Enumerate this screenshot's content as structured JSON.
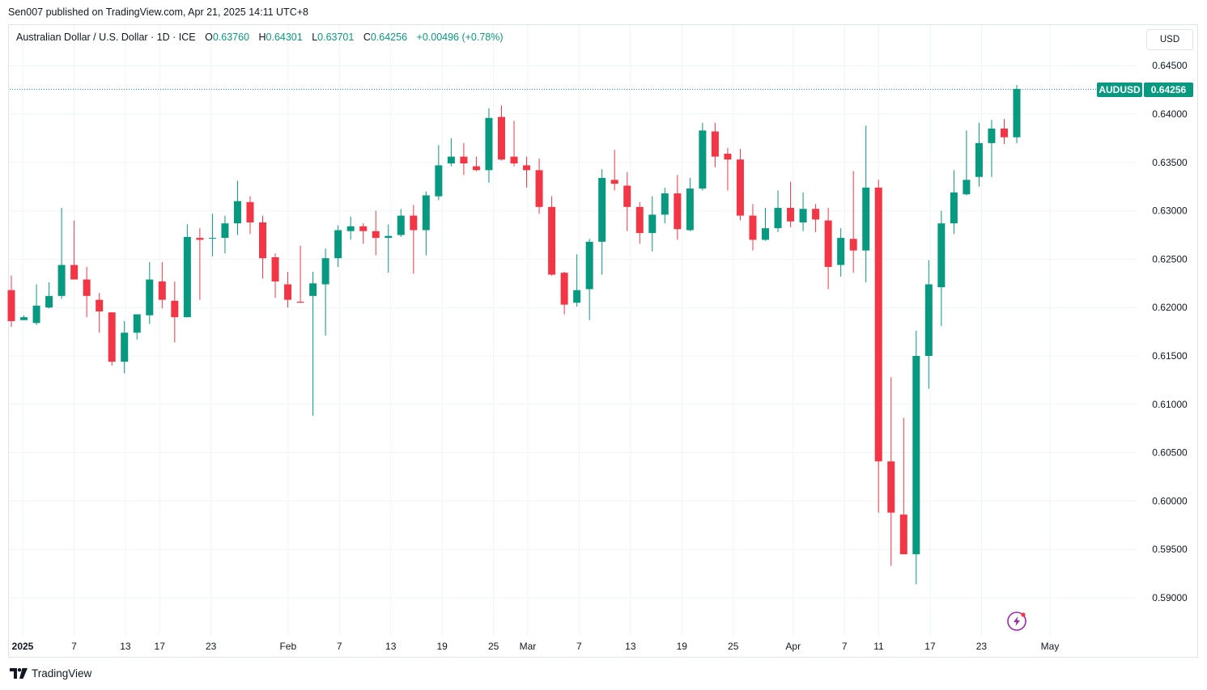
{
  "caption": "Sen007 published on TradingView.com, Apr 21, 2025 14:11 UTC+8",
  "legend": {
    "symbol": "Australian Dollar / U.S. Dollar · 1D · ICE",
    "o_label": "O",
    "o_value": "0.63760",
    "h_label": "H",
    "h_value": "0.64301",
    "l_label": "L",
    "l_value": "0.63701",
    "c_label": "C",
    "c_value": "0.64256",
    "change": "+0.00496 (+0.78%)"
  },
  "currency": "USD",
  "last_price": {
    "symbol": "AUDUSD",
    "price": "0.64256"
  },
  "brand": "TradingView",
  "colors": {
    "up": "#089981",
    "down": "#f23645",
    "grid": "#f0f3fa",
    "text": "#131722"
  },
  "icons": {
    "brand": "tradingview-logo-icon",
    "flash": "lightning-icon"
  },
  "chart_data": {
    "type": "candlestick",
    "x_unit": "trading day (Jan 2 2025 to Apr 21 2025)",
    "y_ticks": [
      "0.64500",
      "0.64000",
      "0.63500",
      "0.63000",
      "0.62500",
      "0.62000",
      "0.61500",
      "0.61000",
      "0.60500",
      "0.60000",
      "0.59500",
      "0.59000"
    ],
    "ylim": [
      0.5878,
      0.6468
    ],
    "grid": true,
    "x_ticks": [
      {
        "label": "2025",
        "date": "2025-01-01",
        "bold": true
      },
      {
        "label": "7",
        "date": "2025-01-07"
      },
      {
        "label": "13",
        "date": "2025-01-13"
      },
      {
        "label": "17",
        "date": "2025-01-17"
      },
      {
        "label": "23",
        "date": "2025-01-23"
      },
      {
        "label": "Feb",
        "date": "2025-02-01"
      },
      {
        "label": "7",
        "date": "2025-02-07"
      },
      {
        "label": "13",
        "date": "2025-02-13"
      },
      {
        "label": "19",
        "date": "2025-02-19"
      },
      {
        "label": "25",
        "date": "2025-02-25"
      },
      {
        "label": "Mar",
        "date": "2025-03-01"
      },
      {
        "label": "7",
        "date": "2025-03-07"
      },
      {
        "label": "13",
        "date": "2025-03-13"
      },
      {
        "label": "19",
        "date": "2025-03-19"
      },
      {
        "label": "25",
        "date": "2025-03-25"
      },
      {
        "label": "Apr",
        "date": "2025-04-01"
      },
      {
        "label": "7",
        "date": "2025-04-07"
      },
      {
        "label": "11",
        "date": "2025-04-11"
      },
      {
        "label": "17",
        "date": "2025-04-17"
      },
      {
        "label": "23",
        "date": "2025-04-23"
      },
      {
        "label": "May",
        "date": "2025-05-01"
      }
    ],
    "candles": [
      {
        "date": "2025-01-02",
        "o": 0.6218,
        "h": 0.6233,
        "l": 0.618,
        "c": 0.6186
      },
      {
        "date": "2025-01-03",
        "o": 0.6187,
        "h": 0.6192,
        "l": 0.6187,
        "c": 0.619
      },
      {
        "date": "2025-01-06",
        "o": 0.6184,
        "h": 0.6224,
        "l": 0.6182,
        "c": 0.6202
      },
      {
        "date": "2025-01-07",
        "o": 0.62,
        "h": 0.6226,
        "l": 0.6199,
        "c": 0.6212
      },
      {
        "date": "2025-01-08",
        "o": 0.6212,
        "h": 0.6303,
        "l": 0.6209,
        "c": 0.6244
      },
      {
        "date": "2025-01-09",
        "o": 0.6244,
        "h": 0.629,
        "l": 0.6229,
        "c": 0.6229
      },
      {
        "date": "2025-01-10",
        "o": 0.6229,
        "h": 0.6242,
        "l": 0.619,
        "c": 0.6212
      },
      {
        "date": "2025-01-13",
        "o": 0.6208,
        "h": 0.6215,
        "l": 0.6174,
        "c": 0.6196
      },
      {
        "date": "2025-01-14",
        "o": 0.6195,
        "h": 0.6195,
        "l": 0.614,
        "c": 0.6144
      },
      {
        "date": "2025-01-15",
        "o": 0.6144,
        "h": 0.6186,
        "l": 0.6132,
        "c": 0.6174
      },
      {
        "date": "2025-01-16",
        "o": 0.6174,
        "h": 0.6193,
        "l": 0.6167,
        "c": 0.6193
      },
      {
        "date": "2025-01-17",
        "o": 0.6192,
        "h": 0.6247,
        "l": 0.6183,
        "c": 0.6229
      },
      {
        "date": "2025-01-20",
        "o": 0.6227,
        "h": 0.6247,
        "l": 0.6199,
        "c": 0.6208
      },
      {
        "date": "2025-01-21",
        "o": 0.6207,
        "h": 0.6227,
        "l": 0.6164,
        "c": 0.619
      },
      {
        "date": "2025-01-22",
        "o": 0.619,
        "h": 0.6286,
        "l": 0.619,
        "c": 0.6273
      },
      {
        "date": "2025-01-23",
        "o": 0.6272,
        "h": 0.6282,
        "l": 0.6208,
        "c": 0.627
      },
      {
        "date": "2025-01-24",
        "o": 0.6272,
        "h": 0.6297,
        "l": 0.6253,
        "c": 0.6272
      },
      {
        "date": "2025-01-27",
        "o": 0.6272,
        "h": 0.6295,
        "l": 0.6256,
        "c": 0.6287
      },
      {
        "date": "2025-01-28",
        "o": 0.6287,
        "h": 0.6331,
        "l": 0.6275,
        "c": 0.631
      },
      {
        "date": "2025-01-29",
        "o": 0.6309,
        "h": 0.6315,
        "l": 0.6276,
        "c": 0.6288
      },
      {
        "date": "2025-01-30",
        "o": 0.6288,
        "h": 0.6295,
        "l": 0.623,
        "c": 0.6251
      },
      {
        "date": "2025-01-31",
        "o": 0.6252,
        "h": 0.6256,
        "l": 0.621,
        "c": 0.6227
      },
      {
        "date": "2025-02-03",
        "o": 0.6224,
        "h": 0.6237,
        "l": 0.62,
        "c": 0.6208
      },
      {
        "date": "2025-02-04",
        "o": 0.6206,
        "h": 0.6264,
        "l": 0.6205,
        "c": 0.6205
      },
      {
        "date": "2025-02-05",
        "o": 0.6212,
        "h": 0.6237,
        "l": 0.6088,
        "c": 0.6225
      },
      {
        "date": "2025-02-06",
        "o": 0.6224,
        "h": 0.6261,
        "l": 0.6171,
        "c": 0.6251
      },
      {
        "date": "2025-02-07",
        "o": 0.6251,
        "h": 0.6285,
        "l": 0.6242,
        "c": 0.628
      },
      {
        "date": "2025-02-10",
        "o": 0.6279,
        "h": 0.6294,
        "l": 0.627,
        "c": 0.6284
      },
      {
        "date": "2025-02-11",
        "o": 0.6284,
        "h": 0.6287,
        "l": 0.6266,
        "c": 0.6279
      },
      {
        "date": "2025-02-12",
        "o": 0.6279,
        "h": 0.63,
        "l": 0.6254,
        "c": 0.6272
      },
      {
        "date": "2025-02-13",
        "o": 0.6272,
        "h": 0.6286,
        "l": 0.6236,
        "c": 0.6274
      },
      {
        "date": "2025-02-14",
        "o": 0.6275,
        "h": 0.6302,
        "l": 0.6273,
        "c": 0.6295
      },
      {
        "date": "2025-02-17",
        "o": 0.6295,
        "h": 0.6306,
        "l": 0.6235,
        "c": 0.628
      },
      {
        "date": "2025-02-18",
        "o": 0.628,
        "h": 0.632,
        "l": 0.6254,
        "c": 0.6316
      },
      {
        "date": "2025-02-19",
        "o": 0.6315,
        "h": 0.6368,
        "l": 0.6311,
        "c": 0.6347
      },
      {
        "date": "2025-02-20",
        "o": 0.6349,
        "h": 0.6375,
        "l": 0.6346,
        "c": 0.6356
      },
      {
        "date": "2025-02-21",
        "o": 0.6356,
        "h": 0.637,
        "l": 0.6337,
        "c": 0.6349
      },
      {
        "date": "2025-02-24",
        "o": 0.6346,
        "h": 0.6356,
        "l": 0.6341,
        "c": 0.6342
      },
      {
        "date": "2025-02-25",
        "o": 0.6342,
        "h": 0.6406,
        "l": 0.6329,
        "c": 0.6396
      },
      {
        "date": "2025-02-26",
        "o": 0.6397,
        "h": 0.6409,
        "l": 0.6352,
        "c": 0.6353
      },
      {
        "date": "2025-02-27",
        "o": 0.6356,
        "h": 0.6393,
        "l": 0.6346,
        "c": 0.6349
      },
      {
        "date": "2025-02-28",
        "o": 0.6347,
        "h": 0.6356,
        "l": 0.6324,
        "c": 0.6342
      },
      {
        "date": "2025-03-03",
        "o": 0.6342,
        "h": 0.6354,
        "l": 0.6297,
        "c": 0.6304
      },
      {
        "date": "2025-03-04",
        "o": 0.6304,
        "h": 0.6315,
        "l": 0.6233,
        "c": 0.6234
      },
      {
        "date": "2025-03-05",
        "o": 0.6236,
        "h": 0.6237,
        "l": 0.6193,
        "c": 0.6203
      },
      {
        "date": "2025-03-06",
        "o": 0.6205,
        "h": 0.6255,
        "l": 0.6201,
        "c": 0.6218
      },
      {
        "date": "2025-03-07",
        "o": 0.6219,
        "h": 0.6271,
        "l": 0.6187,
        "c": 0.6268
      },
      {
        "date": "2025-03-10",
        "o": 0.6268,
        "h": 0.6343,
        "l": 0.6234,
        "c": 0.6334
      },
      {
        "date": "2025-03-11",
        "o": 0.6332,
        "h": 0.6363,
        "l": 0.6321,
        "c": 0.6328
      },
      {
        "date": "2025-03-12",
        "o": 0.6326,
        "h": 0.634,
        "l": 0.6279,
        "c": 0.6304
      },
      {
        "date": "2025-03-13",
        "o": 0.6304,
        "h": 0.6309,
        "l": 0.6266,
        "c": 0.6277
      },
      {
        "date": "2025-03-14",
        "o": 0.6277,
        "h": 0.6315,
        "l": 0.6258,
        "c": 0.6296
      },
      {
        "date": "2025-03-17",
        "o": 0.6296,
        "h": 0.6324,
        "l": 0.6287,
        "c": 0.6318
      },
      {
        "date": "2025-03-18",
        "o": 0.6318,
        "h": 0.6337,
        "l": 0.627,
        "c": 0.6281
      },
      {
        "date": "2025-03-19",
        "o": 0.628,
        "h": 0.6334,
        "l": 0.6279,
        "c": 0.6323
      },
      {
        "date": "2025-03-20",
        "o": 0.6323,
        "h": 0.6391,
        "l": 0.6321,
        "c": 0.6383
      },
      {
        "date": "2025-03-21",
        "o": 0.6382,
        "h": 0.6391,
        "l": 0.6345,
        "c": 0.6356
      },
      {
        "date": "2025-03-24",
        "o": 0.6359,
        "h": 0.6365,
        "l": 0.6321,
        "c": 0.6353
      },
      {
        "date": "2025-03-25",
        "o": 0.6353,
        "h": 0.6364,
        "l": 0.629,
        "c": 0.6295
      },
      {
        "date": "2025-03-26",
        "o": 0.6295,
        "h": 0.6307,
        "l": 0.6259,
        "c": 0.627
      },
      {
        "date": "2025-03-27",
        "o": 0.627,
        "h": 0.6303,
        "l": 0.6269,
        "c": 0.6282
      },
      {
        "date": "2025-03-28",
        "o": 0.6282,
        "h": 0.6321,
        "l": 0.6278,
        "c": 0.6303
      },
      {
        "date": "2025-03-31",
        "o": 0.6303,
        "h": 0.633,
        "l": 0.6283,
        "c": 0.6289
      },
      {
        "date": "2025-04-01",
        "o": 0.6288,
        "h": 0.6319,
        "l": 0.6279,
        "c": 0.6302
      },
      {
        "date": "2025-04-02",
        "o": 0.6302,
        "h": 0.6307,
        "l": 0.6278,
        "c": 0.6291
      },
      {
        "date": "2025-04-03",
        "o": 0.629,
        "h": 0.6303,
        "l": 0.6219,
        "c": 0.6242
      },
      {
        "date": "2025-04-04",
        "o": 0.6244,
        "h": 0.6282,
        "l": 0.6232,
        "c": 0.6272
      },
      {
        "date": "2025-04-07",
        "o": 0.6271,
        "h": 0.6341,
        "l": 0.6236,
        "c": 0.6259
      },
      {
        "date": "2025-04-08",
        "o": 0.6259,
        "h": 0.6388,
        "l": 0.6226,
        "c": 0.6324
      },
      {
        "date": "2025-04-09",
        "o": 0.6324,
        "h": 0.6332,
        "l": 0.5988,
        "c": 0.6041
      },
      {
        "date": "2025-04-10",
        "o": 0.6041,
        "h": 0.6128,
        "l": 0.5933,
        "c": 0.5988
      },
      {
        "date": "2025-04-11",
        "o": 0.5986,
        "h": 0.6086,
        "l": 0.5945,
        "c": 0.5945
      },
      {
        "date": "2025-04-14",
        "o": 0.5945,
        "h": 0.6176,
        "l": 0.5914,
        "c": 0.615
      },
      {
        "date": "2025-04-15",
        "o": 0.615,
        "h": 0.6249,
        "l": 0.6116,
        "c": 0.6224
      },
      {
        "date": "2025-04-16",
        "o": 0.6221,
        "h": 0.63,
        "l": 0.6181,
        "c": 0.6287
      },
      {
        "date": "2025-04-17",
        "o": 0.6287,
        "h": 0.6342,
        "l": 0.6276,
        "c": 0.6319
      },
      {
        "date": "2025-04-18",
        "o": 0.6317,
        "h": 0.6383,
        "l": 0.6316,
        "c": 0.6332
      },
      {
        "date": "2025-04-21",
        "o": 0.6335,
        "h": 0.6391,
        "l": 0.6325,
        "c": 0.637
      },
      {
        "date": "2025-04-22",
        "o": 0.637,
        "h": 0.6394,
        "l": 0.6335,
        "c": 0.6385
      },
      {
        "date": "2025-04-23",
        "o": 0.6385,
        "h": 0.6395,
        "l": 0.6369,
        "c": 0.6376
      },
      {
        "date": "2025-04-24",
        "o": 0.6376,
        "h": 0.643,
        "l": 0.637,
        "c": 0.6426
      }
    ]
  }
}
